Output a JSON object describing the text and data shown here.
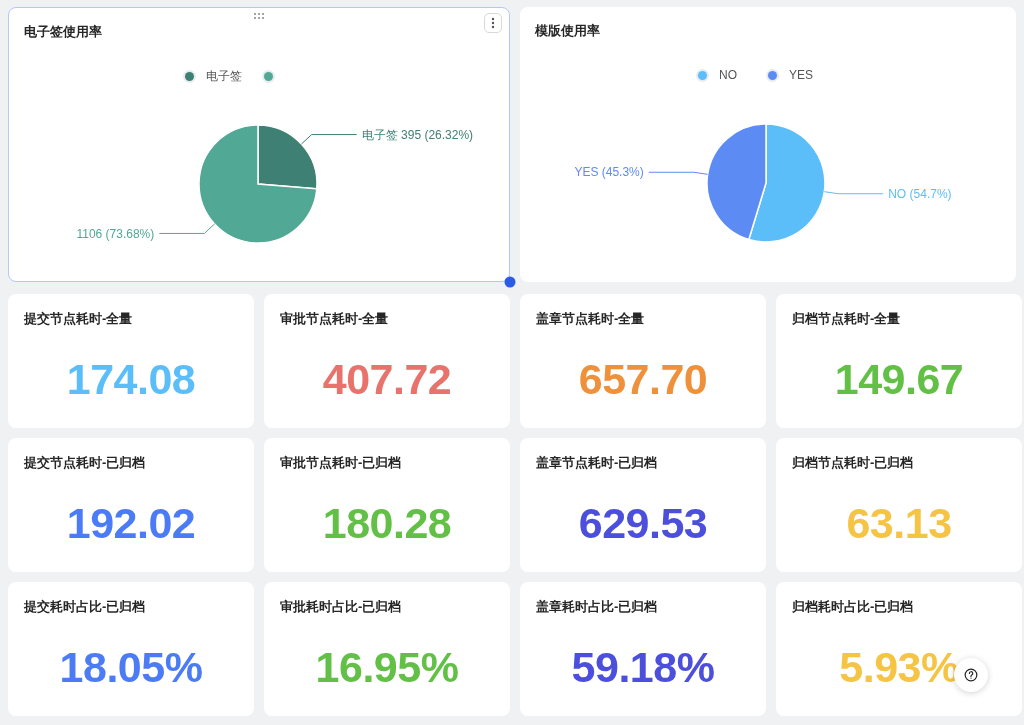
{
  "chart_data": [
    {
      "type": "pie",
      "title": "电子签使用率",
      "categories": [
        "电子签",
        null
      ],
      "values": [
        395,
        1106
      ],
      "colors": [
        "#3e8174",
        "#50a895"
      ],
      "value_labels": [
        "395 (26.32%)",
        "1106 (73.68%)"
      ],
      "legend": "top"
    },
    {
      "type": "pie",
      "title": "模版使用率",
      "categories": [
        "NO",
        "YES"
      ],
      "values": [
        54.7,
        45.3
      ],
      "colors": [
        "#5cbef9",
        "#5d8bf4"
      ],
      "value_labels": [
        "(54.7%)",
        "(45.3%)"
      ],
      "legend": "top"
    },
    {
      "type": "other",
      "title": "提交节点耗时-全量",
      "annotations": [
        "174.08"
      ],
      "color": "#5cbef9"
    },
    {
      "type": "other",
      "title": "审批节点耗时-全量",
      "annotations": [
        "407.72"
      ],
      "color": "#e8736c"
    },
    {
      "type": "other",
      "title": "盖章节点耗时-全量",
      "annotations": [
        "657.70"
      ],
      "color": "#ef913a"
    },
    {
      "type": "other",
      "title": "归档节点耗时-全量",
      "annotations": [
        "149.67"
      ],
      "color": "#62c046"
    },
    {
      "type": "other",
      "title": "提交节点耗时-已归档",
      "annotations": [
        "192.02"
      ],
      "color": "#4b7bf5"
    },
    {
      "type": "other",
      "title": "审批节点耗时-已归档",
      "annotations": [
        "180.28"
      ],
      "color": "#62c046"
    },
    {
      "type": "other",
      "title": "盖章节点耗时-已归档",
      "annotations": [
        "629.53"
      ],
      "color": "#4b4fdc"
    },
    {
      "type": "other",
      "title": "归档节点耗时-已归档",
      "annotations": [
        "63.13"
      ],
      "color": "#f5c444"
    },
    {
      "type": "other",
      "title": "提交耗时占比-已归档",
      "annotations": [
        "18.05%"
      ],
      "color": "#4b7bf5"
    },
    {
      "type": "other",
      "title": "审批耗时占比-已归档",
      "annotations": [
        "16.95%"
      ],
      "color": "#62c046"
    },
    {
      "type": "other",
      "title": "盖章耗时占比-已归档",
      "annotations": [
        "59.18%"
      ],
      "color": "#4b4fdc"
    },
    {
      "type": "other",
      "title": "归档耗时占比-已归档",
      "annotations": [
        "5.93%"
      ],
      "color": "#f5c444"
    }
  ]
}
